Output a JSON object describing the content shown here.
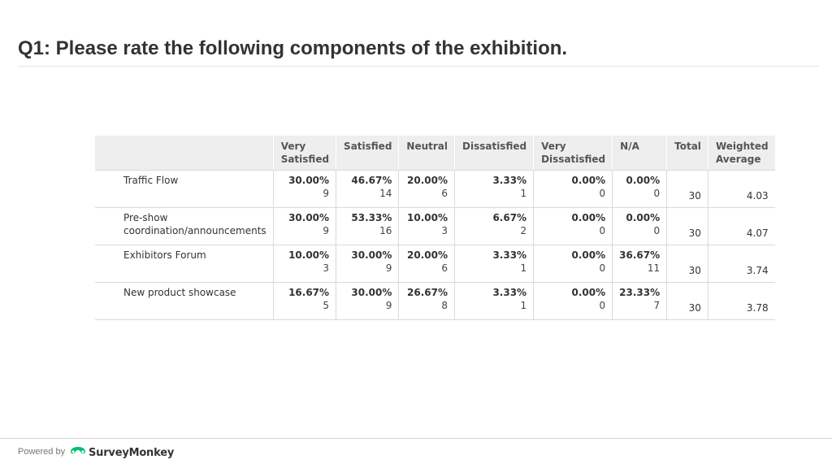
{
  "title": "Q1: Please rate the following components of the exhibition.",
  "table": {
    "headers": [
      "",
      "Very Satisfied",
      "Satisfied",
      "Neutral",
      "Dissatisfied",
      "Very Dissatisfied",
      "N/A",
      "Total",
      "Weighted Average"
    ],
    "header_lines": {
      "very_satisfied": [
        "Very",
        "Satisfied"
      ],
      "very_dissatisfied": [
        "Very",
        "Dissatisfied"
      ],
      "weighted_average": [
        "Weighted",
        "Average"
      ]
    },
    "rows": [
      {
        "label_lines": [
          "Traffic Flow"
        ],
        "cells": [
          {
            "pct": "30.00%",
            "count": "9"
          },
          {
            "pct": "46.67%",
            "count": "14"
          },
          {
            "pct": "20.00%",
            "count": "6"
          },
          {
            "pct": "3.33%",
            "count": "1"
          },
          {
            "pct": "0.00%",
            "count": "0"
          },
          {
            "pct": "0.00%",
            "count": "0"
          }
        ],
        "total": "30",
        "weighted_average": "4.03"
      },
      {
        "label_lines": [
          "Pre-show",
          "coordination/announcements"
        ],
        "cells": [
          {
            "pct": "30.00%",
            "count": "9"
          },
          {
            "pct": "53.33%",
            "count": "16"
          },
          {
            "pct": "10.00%",
            "count": "3"
          },
          {
            "pct": "6.67%",
            "count": "2"
          },
          {
            "pct": "0.00%",
            "count": "0"
          },
          {
            "pct": "0.00%",
            "count": "0"
          }
        ],
        "total": "30",
        "weighted_average": "4.07"
      },
      {
        "label_lines": [
          "Exhibitors Forum"
        ],
        "cells": [
          {
            "pct": "10.00%",
            "count": "3"
          },
          {
            "pct": "30.00%",
            "count": "9"
          },
          {
            "pct": "20.00%",
            "count": "6"
          },
          {
            "pct": "3.33%",
            "count": "1"
          },
          {
            "pct": "0.00%",
            "count": "0"
          },
          {
            "pct": "36.67%",
            "count": "11"
          }
        ],
        "total": "30",
        "weighted_average": "3.74"
      },
      {
        "label_lines": [
          "New product showcase"
        ],
        "cells": [
          {
            "pct": "16.67%",
            "count": "5"
          },
          {
            "pct": "30.00%",
            "count": "9"
          },
          {
            "pct": "26.67%",
            "count": "8"
          },
          {
            "pct": "3.33%",
            "count": "1"
          },
          {
            "pct": "0.00%",
            "count": "0"
          },
          {
            "pct": "23.33%",
            "count": "7"
          }
        ],
        "total": "30",
        "weighted_average": "3.78"
      }
    ]
  },
  "footer": {
    "powered_by": "Powered by",
    "brand": "SurveyMonkey",
    "brand_icon": "surveymonkey-logo-icon",
    "brand_color": "#00bf6f"
  }
}
